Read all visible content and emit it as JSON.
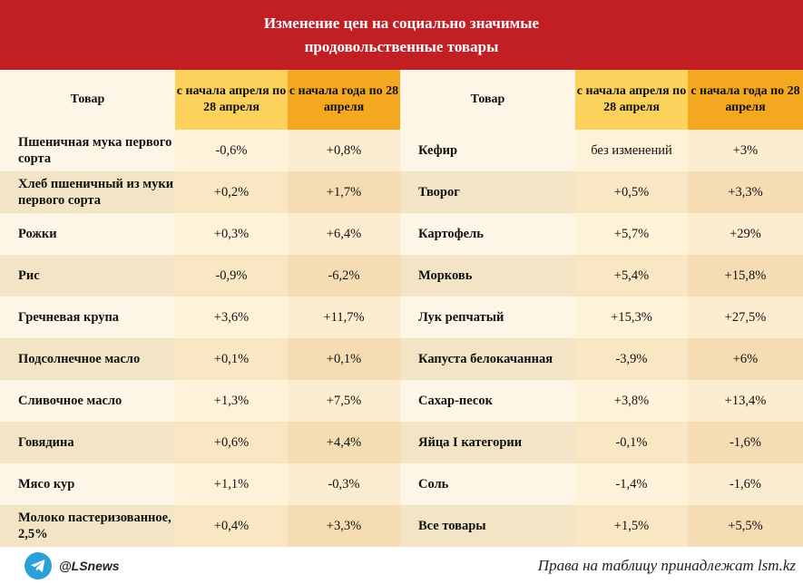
{
  "title": {
    "line1": "Изменение цен на социально значимые",
    "line2": "продовольственные товары"
  },
  "headers": {
    "product": "Товар",
    "since_april": "с начала апреля по 28 апреля",
    "since_year": "с начала года по 28 апреля"
  },
  "rows": [
    {
      "left": {
        "name": "Пшеничная мука первого сорта",
        "apr": "-0,6%",
        "year": "+0,8%"
      },
      "right": {
        "name": "Кефир",
        "apr": "без изменений",
        "year": "+3%"
      }
    },
    {
      "left": {
        "name": "Хлеб пшеничный из муки первого сорта",
        "apr": "+0,2%",
        "year": "+1,7%"
      },
      "right": {
        "name": "Творог",
        "apr": "+0,5%",
        "year": "+3,3%"
      }
    },
    {
      "left": {
        "name": "Рожки",
        "apr": "+0,3%",
        "year": "+6,4%"
      },
      "right": {
        "name": "Картофель",
        "apr": "+5,7%",
        "year": "+29%"
      }
    },
    {
      "left": {
        "name": "Рис",
        "apr": "-0,9%",
        "year": "-6,2%"
      },
      "right": {
        "name": "Морковь",
        "apr": "+5,4%",
        "year": "+15,8%"
      }
    },
    {
      "left": {
        "name": "Гречневая крупа",
        "apr": "+3,6%",
        "year": "+11,7%"
      },
      "right": {
        "name": "Лук репчатый",
        "apr": "+15,3%",
        "year": "+27,5%"
      }
    },
    {
      "left": {
        "name": "Подсолнечное масло",
        "apr": "+0,1%",
        "year": "+0,1%"
      },
      "right": {
        "name": "Капуста белокачанная",
        "apr": "-3,9%",
        "year": "+6%"
      }
    },
    {
      "left": {
        "name": "Сливочное масло",
        "apr": "+1,3%",
        "year": "+7,5%"
      },
      "right": {
        "name": "Сахар-песок",
        "apr": "+3,8%",
        "year": "+13,4%"
      }
    },
    {
      "left": {
        "name": "Говядина",
        "apr": "+0,6%",
        "year": "+4,4%"
      },
      "right": {
        "name": "Яйца I категории",
        "apr": "-0,1%",
        "year": "-1,6%"
      }
    },
    {
      "left": {
        "name": "Мясо кур",
        "apr": "+1,1%",
        "year": "-0,3%"
      },
      "right": {
        "name": "Соль",
        "apr": "-1,4%",
        "year": "-1,6%"
      }
    },
    {
      "left": {
        "name": "Молоко пастеризованное, 2,5%",
        "apr": "+0,4%",
        "year": "+3,3%"
      },
      "right": {
        "name": "Все товары",
        "apr": "+1,5%",
        "year": "+5,5%"
      }
    }
  ],
  "footer": {
    "icon": "telegram-icon",
    "handle": "@LSnews",
    "rights": "Права на таблицу принадлежат lsm.kz"
  },
  "colors": {
    "title_bg": "#c21f24",
    "header_april": "#fdd25c",
    "header_year": "#f3a81f",
    "telegram": "#2ca0d9"
  }
}
